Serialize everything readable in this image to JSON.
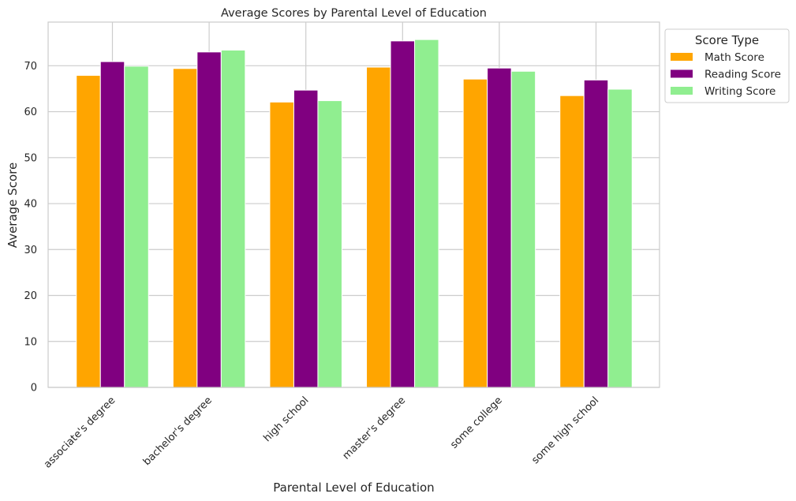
{
  "chart_data": {
    "type": "bar",
    "title": "Average Scores by Parental Level of Education",
    "xlabel": "Parental Level of Education",
    "ylabel": "Average Score",
    "categories": [
      "associate's degree",
      "bachelor's degree",
      "high school",
      "master's degree",
      "some college",
      "some high school"
    ],
    "series": [
      {
        "name": "Math Score",
        "color": "#FFA500",
        "values": [
          67.9,
          69.4,
          62.1,
          69.7,
          67.1,
          63.5
        ]
      },
      {
        "name": "Reading Score",
        "color": "#800080",
        "values": [
          70.9,
          73.0,
          64.7,
          75.4,
          69.5,
          66.9
        ]
      },
      {
        "name": "Writing Score",
        "color": "#90EE90",
        "values": [
          69.9,
          73.4,
          62.4,
          75.7,
          68.8,
          64.9
        ]
      }
    ],
    "yticks": [
      0,
      10,
      20,
      30,
      40,
      50,
      60,
      70
    ],
    "ylim": [
      0,
      79.5
    ],
    "grid": true,
    "legend": {
      "title": "Score Type",
      "placement": "outside-upper-right"
    }
  }
}
